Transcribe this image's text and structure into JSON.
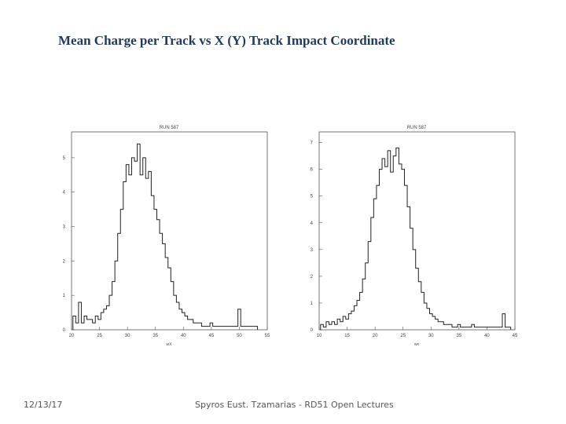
{
  "slide": {
    "title": "Mean Charge per Track vs X (Y) Track Impact Coordinate",
    "date": "12/13/17",
    "footer": "Spyros Eust. Tzamarias - RD51 Open Lectures"
  },
  "chart_data": [
    {
      "type": "line",
      "title": "RUN 587",
      "xlabel": "wX",
      "xlim": [
        20,
        55
      ],
      "ylim": [
        0,
        5.75
      ],
      "xticks": [
        20,
        25,
        30,
        35,
        40,
        45,
        50,
        55
      ],
      "yticks": [
        0,
        1,
        2,
        3,
        4,
        5
      ],
      "x": [
        20.5,
        21,
        21.5,
        22,
        22.5,
        23,
        23.5,
        24,
        24.5,
        25,
        25.5,
        26,
        26.5,
        27,
        27.5,
        28,
        28.5,
        29,
        29.5,
        30,
        30.5,
        31,
        31.5,
        32,
        32.5,
        33,
        33.5,
        34,
        34.5,
        35,
        35.5,
        36,
        36.5,
        37,
        37.5,
        38,
        38.5,
        39,
        39.5,
        40,
        40.5,
        41,
        41.5,
        42,
        42.5,
        43,
        43.5,
        44,
        44.5,
        45,
        45.5,
        46,
        46.5,
        47,
        47.5,
        48,
        48.5,
        49,
        49.5,
        50,
        50.5,
        51,
        51.5,
        52,
        52.5,
        53
      ],
      "y": [
        0.4,
        0.2,
        0.8,
        0.2,
        0.4,
        0.3,
        0.3,
        0.2,
        0.4,
        0.3,
        0.5,
        0.6,
        0.7,
        1.0,
        1.4,
        2.0,
        2.8,
        3.5,
        4.3,
        4.8,
        4.5,
        5.0,
        4.9,
        5.4,
        4.5,
        5.0,
        4.4,
        4.6,
        3.9,
        3.5,
        3.2,
        2.8,
        2.5,
        2.1,
        1.8,
        1.4,
        1.0,
        0.8,
        0.6,
        0.5,
        0.4,
        0.3,
        0.3,
        0.2,
        0.2,
        0.2,
        0.1,
        0.1,
        0.1,
        0.2,
        0.1,
        0.1,
        0.1,
        0.1,
        0.1,
        0.1,
        0.1,
        0.1,
        0.1,
        0.6,
        0.1,
        0.1,
        0.1,
        0.1,
        0.1,
        0.1
      ]
    },
    {
      "type": "line",
      "title": "RUN 587",
      "xlabel": "wx",
      "xlim": [
        10,
        45
      ],
      "ylim": [
        0,
        7.4
      ],
      "xticks": [
        10,
        15,
        20,
        25,
        30,
        35,
        40,
        45
      ],
      "yticks": [
        0,
        1,
        2,
        3,
        4,
        5,
        6,
        7
      ],
      "x": [
        10.5,
        11,
        11.5,
        12,
        12.5,
        13,
        13.5,
        14,
        14.5,
        15,
        15.5,
        16,
        16.5,
        17,
        17.5,
        18,
        18.5,
        19,
        19.5,
        20,
        20.5,
        21,
        21.5,
        22,
        22.5,
        23,
        23.5,
        24,
        24.5,
        25,
        25.5,
        26,
        26.5,
        27,
        27.5,
        28,
        28.5,
        29,
        29.5,
        30,
        30.5,
        31,
        31.5,
        32,
        32.5,
        33,
        33.5,
        34,
        34.5,
        35,
        35.5,
        36,
        36.5,
        37,
        37.5,
        38,
        38.5,
        39,
        39.5,
        40,
        40.5,
        41,
        41.5,
        42,
        42.5,
        43,
        43.5,
        44
      ],
      "y": [
        0.2,
        0.1,
        0.3,
        0.2,
        0.3,
        0.2,
        0.4,
        0.3,
        0.5,
        0.4,
        0.6,
        0.7,
        0.9,
        1.1,
        1.4,
        1.9,
        2.5,
        3.3,
        4.2,
        4.9,
        5.4,
        6.0,
        6.4,
        6.1,
        6.7,
        5.9,
        6.5,
        6.8,
        6.2,
        6.0,
        5.4,
        4.6,
        3.8,
        3.0,
        2.3,
        1.8,
        1.4,
        1.0,
        0.8,
        0.6,
        0.5,
        0.4,
        0.3,
        0.3,
        0.2,
        0.2,
        0.2,
        0.1,
        0.1,
        0.2,
        0.1,
        0.1,
        0.1,
        0.1,
        0.2,
        0.1,
        0.1,
        0.1,
        0.1,
        0.1,
        0.1,
        0.1,
        0.1,
        0.1,
        0.1,
        0.6,
        0.1,
        0.1
      ]
    }
  ]
}
